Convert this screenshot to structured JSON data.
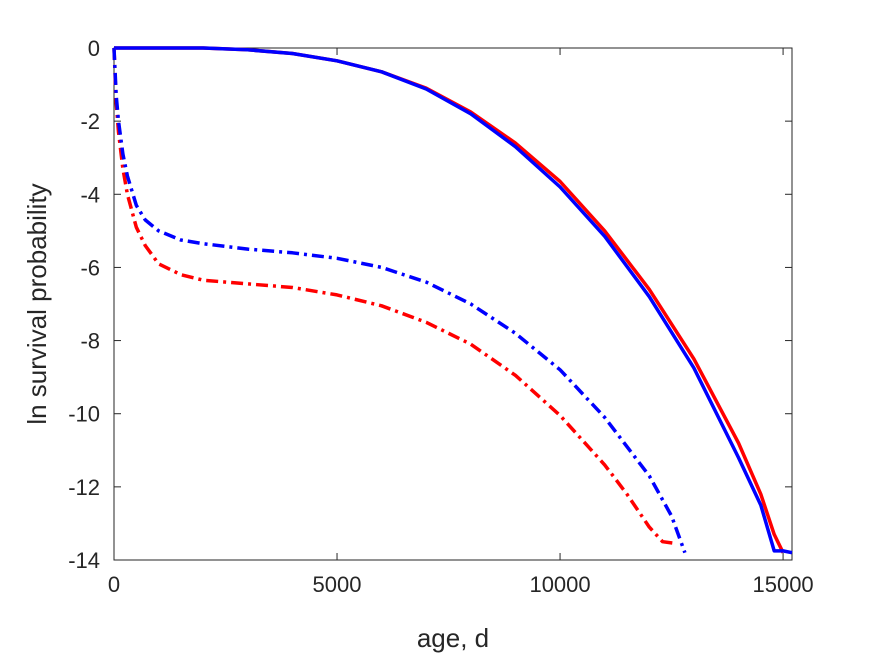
{
  "chart_data": {
    "type": "line",
    "xlabel": "age, d",
    "ylabel": "ln survival probability",
    "xlim": [
      0,
      15200
    ],
    "ylim": [
      -14,
      0
    ],
    "xticks": [
      0,
      5000,
      10000,
      15000
    ],
    "yticks": [
      0,
      -2,
      -4,
      -6,
      -8,
      -10,
      -12,
      -14
    ],
    "grid": false,
    "series": [
      {
        "color": "#ff0000",
        "style": "solid",
        "x": [
          0,
          1000,
          2000,
          3000,
          4000,
          5000,
          6000,
          7000,
          8000,
          9000,
          10000,
          11000,
          12000,
          13000,
          14000,
          14500,
          14800,
          15000
        ],
        "y": [
          0,
          0,
          0,
          -0.05,
          -0.15,
          -0.35,
          -0.65,
          -1.1,
          -1.75,
          -2.6,
          -3.65,
          -5.0,
          -6.6,
          -8.5,
          -10.8,
          -12.2,
          -13.3,
          -13.8
        ]
      },
      {
        "color": "#0000ff",
        "style": "solid",
        "x": [
          0,
          1000,
          2000,
          3000,
          4000,
          5000,
          6000,
          7000,
          8000,
          9000,
          10000,
          11000,
          12000,
          13000,
          14000,
          14500,
          14800,
          15000,
          15200
        ],
        "y": [
          0,
          0,
          0,
          -0.05,
          -0.15,
          -0.35,
          -0.65,
          -1.12,
          -1.8,
          -2.7,
          -3.8,
          -5.15,
          -6.8,
          -8.75,
          -11.2,
          -12.5,
          -13.75,
          -13.75,
          -13.8
        ]
      },
      {
        "color": "#ff0000",
        "style": "dash-dot",
        "x": [
          0,
          50,
          100,
          200,
          300,
          500,
          700,
          1000,
          1500,
          2000,
          3000,
          4000,
          5000,
          6000,
          7000,
          8000,
          9000,
          10000,
          11000,
          11500,
          12000,
          12300,
          12600
        ],
        "y": [
          0,
          -1.5,
          -2.3,
          -3.3,
          -4.0,
          -4.9,
          -5.4,
          -5.9,
          -6.2,
          -6.35,
          -6.45,
          -6.55,
          -6.75,
          -7.05,
          -7.5,
          -8.1,
          -8.95,
          -10.05,
          -11.4,
          -12.2,
          -13.1,
          -13.5,
          -13.55
        ]
      },
      {
        "color": "#0000ff",
        "style": "dash-dot",
        "x": [
          0,
          50,
          100,
          200,
          300,
          500,
          700,
          1000,
          1500,
          2000,
          3000,
          4000,
          5000,
          6000,
          7000,
          8000,
          9000,
          10000,
          11000,
          12000,
          12500,
          12800
        ],
        "y": [
          0,
          -1.3,
          -2.0,
          -2.9,
          -3.5,
          -4.3,
          -4.7,
          -5.0,
          -5.25,
          -5.35,
          -5.5,
          -5.6,
          -5.75,
          -6.0,
          -6.4,
          -7.0,
          -7.8,
          -8.8,
          -10.1,
          -11.7,
          -12.8,
          -13.8
        ]
      }
    ]
  }
}
